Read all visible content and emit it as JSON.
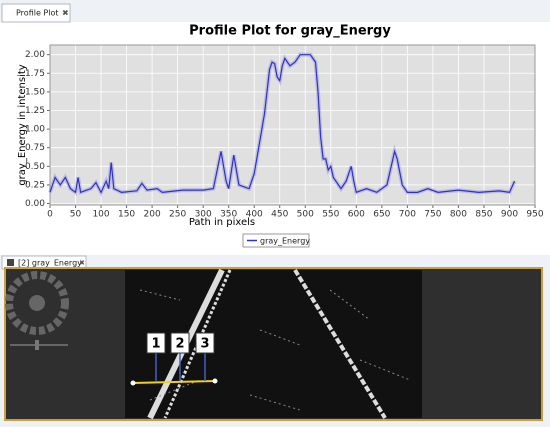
{
  "tabs": {
    "profile": "Profile Plot",
    "image": "[2] gray_Energy"
  },
  "chart_data": {
    "type": "line",
    "title": "Profile Plot for gray_Energy",
    "x_label": "Path in pixels",
    "y_label": "gray_Energy in intensity",
    "x": [
      0,
      10,
      20,
      30,
      40,
      50,
      55,
      60,
      80,
      90,
      100,
      110,
      115,
      120,
      125,
      140,
      170,
      180,
      190,
      210,
      220,
      260,
      300,
      320,
      335,
      345,
      350,
      360,
      370,
      390,
      400,
      410,
      420,
      425,
      430,
      435,
      440,
      445,
      450,
      455,
      460,
      470,
      480,
      490,
      500,
      510,
      520,
      525,
      530,
      535,
      540,
      545,
      550,
      555,
      560,
      570,
      580,
      590,
      595,
      600,
      620,
      640,
      660,
      670,
      675,
      680,
      690,
      700,
      720,
      740,
      760,
      800,
      840,
      880,
      900,
      910
    ],
    "series": [
      {
        "name": "gray_Energy",
        "color": "#3030c8",
        "values": [
          0.15,
          0.35,
          0.25,
          0.35,
          0.2,
          0.15,
          0.35,
          0.15,
          0.2,
          0.28,
          0.15,
          0.3,
          0.2,
          0.55,
          0.2,
          0.15,
          0.17,
          0.27,
          0.18,
          0.2,
          0.15,
          0.18,
          0.18,
          0.2,
          0.7,
          0.3,
          0.2,
          0.65,
          0.25,
          0.2,
          0.4,
          0.8,
          1.2,
          1.5,
          1.8,
          1.9,
          1.88,
          1.7,
          1.65,
          1.85,
          1.95,
          1.85,
          1.9,
          2.0,
          2.0,
          2.0,
          1.9,
          1.5,
          0.9,
          0.6,
          0.6,
          0.45,
          0.5,
          0.35,
          0.3,
          0.2,
          0.3,
          0.5,
          0.3,
          0.15,
          0.2,
          0.15,
          0.25,
          0.55,
          0.7,
          0.6,
          0.25,
          0.15,
          0.15,
          0.2,
          0.15,
          0.18,
          0.15,
          0.17,
          0.15,
          0.3
        ]
      }
    ],
    "xlim": [
      0,
      950
    ],
    "xticks": [
      0,
      50,
      100,
      150,
      200,
      250,
      300,
      350,
      400,
      450,
      500,
      550,
      600,
      650,
      700,
      750,
      800,
      850,
      900,
      950
    ],
    "ylim": [
      -0.02,
      2.13
    ],
    "yticks": [
      {
        "value": 0,
        "label": "0.00"
      },
      {
        "value": 0.25,
        "label": "0.25"
      },
      {
        "value": 0.5,
        "label": "0.50"
      },
      {
        "value": 0.75,
        "label": "0.75"
      },
      {
        "value": 1,
        "label": "1.00"
      },
      {
        "value": 1.25,
        "label": "1.25"
      },
      {
        "value": 1.5,
        "label": "1.50"
      },
      {
        "value": 1.75,
        "label": "1.75"
      },
      {
        "value": 2,
        "label": "2.00"
      }
    ],
    "grid": true
  },
  "image_labels": [
    "1",
    "2",
    "3"
  ]
}
